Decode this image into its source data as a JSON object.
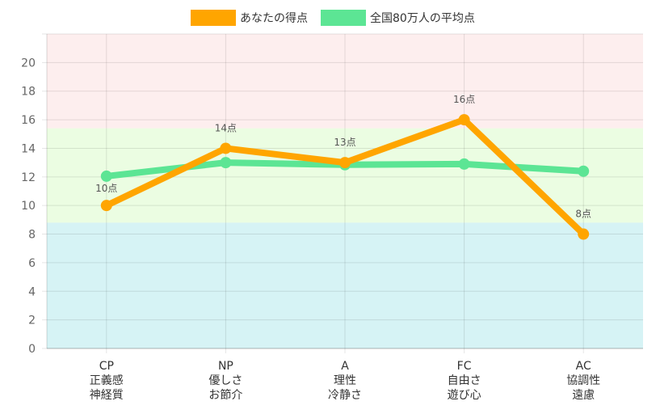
{
  "chart_data": {
    "type": "line",
    "categories": [
      [
        "CP",
        "正義感",
        "神経質"
      ],
      [
        "NP",
        "優しさ",
        "お節介"
      ],
      [
        "A",
        "理性",
        "冷静さ"
      ],
      [
        "FC",
        "自由さ",
        "遊び心"
      ],
      [
        "AC",
        "協調性",
        "遠慮"
      ]
    ],
    "series": [
      {
        "name": "あなたの得点",
        "color": "#FFA500",
        "values": [
          10,
          14,
          13,
          16,
          8
        ],
        "data_labels": [
          "10点",
          "14点",
          "13点",
          "16点",
          "8点"
        ]
      },
      {
        "name": "全国80万人の平均点",
        "color": "#5CE594",
        "values": [
          12.05,
          13.0,
          12.85,
          12.9,
          12.4
        ]
      }
    ],
    "ylim": [
      0,
      22
    ],
    "yticks": [
      0,
      2,
      4,
      6,
      8,
      10,
      12,
      14,
      16,
      18,
      20
    ],
    "grid": true,
    "legend": "top",
    "bands": [
      {
        "from": 15.4,
        "to": 22,
        "color": "#FDEEEE"
      },
      {
        "from": 8.8,
        "to": 15.4,
        "color": "#EBFDE2"
      },
      {
        "from": 0,
        "to": 8.8,
        "color": "#D6F3F5"
      }
    ]
  }
}
